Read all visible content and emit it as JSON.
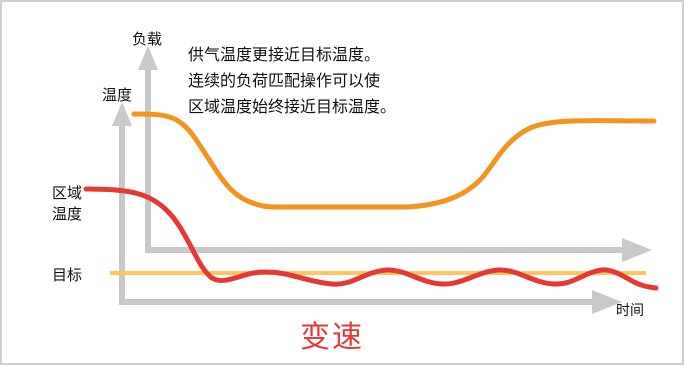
{
  "labels": {
    "load": "负载",
    "temp": "温度",
    "zone_temp_line1": "区域",
    "zone_temp_line2": "温度",
    "target": "目标",
    "time": "时间"
  },
  "annotation": [
    "供气温度更接近目标温度。",
    "连续的负荷匹配操作可以使",
    "区域温度始终接近目标温度。"
  ],
  "title": "变速",
  "colors": {
    "axis": "#c9c9c9",
    "supply_air_curve": "#f3941f",
    "zone_temp_curve": "#e53935",
    "target_line": "#fbc55f",
    "title": "#e53935"
  }
}
